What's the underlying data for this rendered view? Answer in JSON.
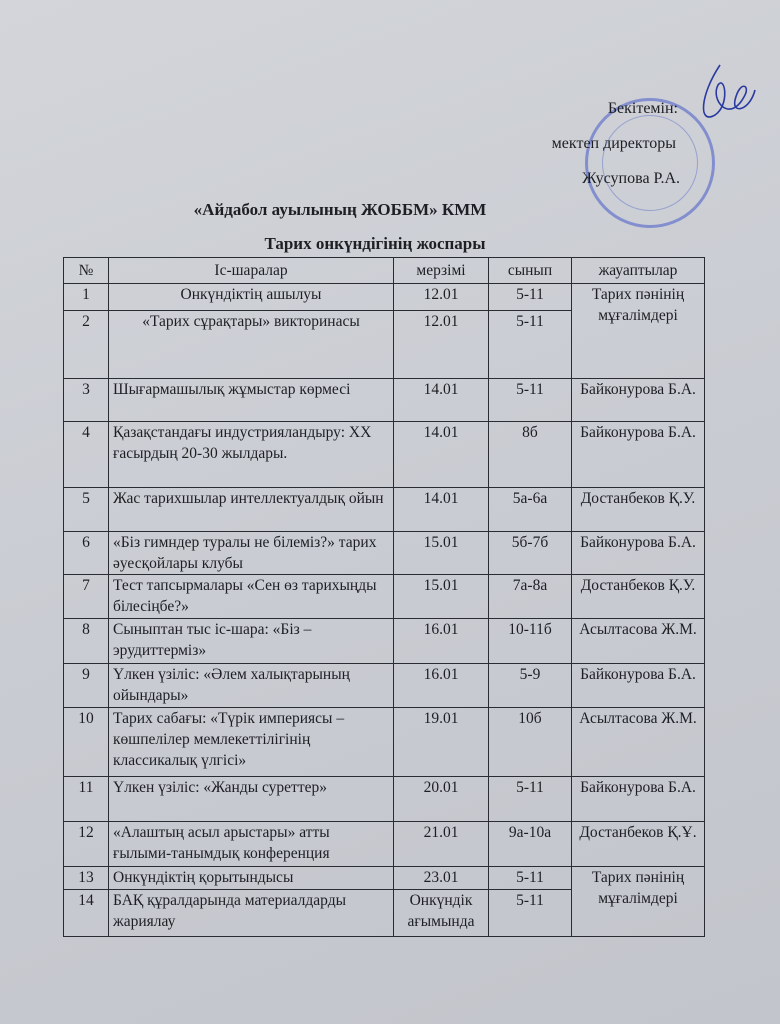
{
  "approval": {
    "line1": "Бекітемін:",
    "line2": "мектеп директоры",
    "line3": "Жусупова Р.А."
  },
  "title": "«Айдабол ауылының ЖОББМ» КММ",
  "subtitle": "Тарих онкүндігінің жоспары",
  "table": {
    "headers": [
      "№",
      "Іс-шаралар",
      "мерзімі",
      "сынып",
      "жауаптылар"
    ],
    "rows": [
      {
        "no": "1",
        "activity": "Онкүндіктің ашылуы",
        "date": "12.01",
        "class": "5-11",
        "resp": "Тарих пәнінің мұғалімдері"
      },
      {
        "no": "2",
        "activity": "«Тарих сұрақтары» викторинасы",
        "date": "12.01",
        "class": "5-11",
        "resp": ""
      },
      {
        "no": "3",
        "activity": "Шығармашылық жұмыстар көрмесі",
        "date": "14.01",
        "class": "5-11",
        "resp": "Байконурова Б.А."
      },
      {
        "no": "4",
        "activity": "Қазақстандағы индустрияландыру: ХХ ғасырдың 20-30 жылдары.",
        "date": "14.01",
        "class": "8б",
        "resp": "Байконурова Б.А."
      },
      {
        "no": "5",
        "activity": "Жас тарихшылар интеллектуалдық ойын",
        "date": "14.01",
        "class": "5а-6а",
        "resp": "Достанбеков Қ.У."
      },
      {
        "no": "6",
        "activity": "«Біз гимндер туралы не білеміз?» тарих әуесқойлары клубы",
        "date": "15.01",
        "class": "5б-7б",
        "resp": "Байконурова Б.А."
      },
      {
        "no": "7",
        "activity": "Тест тапсырмалары «Сен өз тарихыңды білесіңбе?»",
        "date": "15.01",
        "class": "7а-8а",
        "resp": "Достанбеков Қ.У."
      },
      {
        "no": "8",
        "activity": "Сыныптан тыс іс-шара: «Біз – эрудиттерміз»",
        "date": "16.01",
        "class": "10-11б",
        "resp": "Асылтасова Ж.М."
      },
      {
        "no": "9",
        "activity": "Үлкен үзіліс: «Әлем халықтарының ойындары»",
        "date": "16.01",
        "class": "5-9",
        "resp": "Байконурова Б.А."
      },
      {
        "no": "10",
        "activity": "Тарих сабағы: «Түрік империясы – көшпелілер мемлекеттілігінің классикалық үлгісі»",
        "date": "19.01",
        "class": "10б",
        "resp": "Асылтасова Ж.М."
      },
      {
        "no": "11",
        "activity": "Үлкен үзіліс: «Жанды суреттер»",
        "date": "20.01",
        "class": "5-11",
        "resp": "Байконурова Б.А."
      },
      {
        "no": "12",
        "activity": "«Алаштың асыл арыстары» атты ғылыми-танымдық конференция",
        "date": "21.01",
        "class": "9а-10а",
        "resp": "Достанбеков Қ.Ұ."
      },
      {
        "no": "13",
        "activity": "Онкүндіктің қорытындысы",
        "date": "23.01",
        "class": "5-11",
        "resp": "Тарих пәнінің мұғалімдері"
      },
      {
        "no": "14",
        "activity": "БАҚ құралдарында материалдарды жариялау",
        "date": "Онкүндік ағымында",
        "class": "5-11",
        "resp": ""
      }
    ]
  },
  "colors": {
    "stamp": "#465ac8",
    "ink": "#1d1f24",
    "paper": "#c9ccd2"
  }
}
